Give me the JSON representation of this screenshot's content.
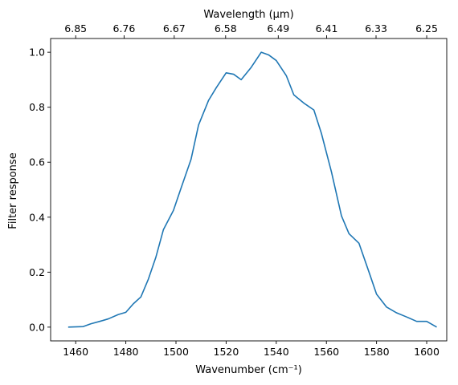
{
  "chart_data": {
    "type": "line",
    "xlabel": "Wavenumber (cm⁻¹)",
    "ylabel": "Filter response",
    "x2label": "Wavelength (μm)",
    "xlim": [
      1450,
      1608
    ],
    "ylim": [
      -0.05,
      1.05
    ],
    "grid": false,
    "line_color": "#1f77b4",
    "x_ticks": [
      1460,
      1480,
      1500,
      1520,
      1540,
      1560,
      1580,
      1600
    ],
    "x_tick_labels": [
      "1460",
      "1480",
      "1500",
      "1520",
      "1540",
      "1560",
      "1580",
      "1600"
    ],
    "y_ticks": [
      0.0,
      0.2,
      0.4,
      0.6,
      0.8,
      1.0
    ],
    "y_tick_labels": [
      "0.0",
      "0.2",
      "0.4",
      "0.6",
      "0.8",
      "1.0"
    ],
    "x2_tick_labels": [
      "6.85",
      "6.76",
      "6.67",
      "6.58",
      "6.49",
      "6.41",
      "6.33",
      "6.25"
    ],
    "x2_tick_wavenumbers": [
      1460,
      1479.3,
      1499.3,
      1519.8,
      1540.8,
      1560.1,
      1579.8,
      1600
    ],
    "series": [
      {
        "x": [
          1457,
          1463,
          1466,
          1470,
          1473,
          1477,
          1480,
          1483,
          1486,
          1489,
          1492,
          1495,
          1499,
          1502,
          1506,
          1509,
          1513,
          1516,
          1520,
          1523,
          1526,
          1530,
          1534,
          1537,
          1540,
          1544,
          1547,
          1551,
          1555,
          1558,
          1562,
          1566,
          1569,
          1573,
          1577,
          1580,
          1584,
          1588,
          1592,
          1596,
          1600,
          1604
        ],
        "y": [
          0.0,
          0.002,
          0.012,
          0.022,
          0.03,
          0.046,
          0.054,
          0.085,
          0.11,
          0.175,
          0.255,
          0.355,
          0.425,
          0.505,
          0.61,
          0.735,
          0.825,
          0.87,
          0.925,
          0.92,
          0.9,
          0.945,
          1.0,
          0.99,
          0.97,
          0.915,
          0.845,
          0.815,
          0.79,
          0.705,
          0.565,
          0.405,
          0.34,
          0.305,
          0.2,
          0.12,
          0.073,
          0.052,
          0.037,
          0.021,
          0.021,
          0.0
        ]
      }
    ]
  }
}
